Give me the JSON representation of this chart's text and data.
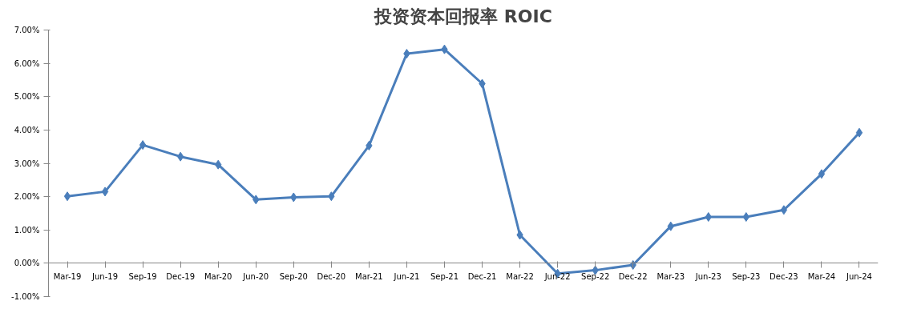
{
  "chart_data": {
    "type": "line",
    "title": "投资资本回报率 ROIC",
    "categories": [
      "Mar-19",
      "Jun-19",
      "Sep-19",
      "Dec-19",
      "Mar-20",
      "Jun-20",
      "Sep-20",
      "Dec-20",
      "Mar-21",
      "Jun-21",
      "Sep-21",
      "Dec-21",
      "Mar-22",
      "Jun-22",
      "Sep-22",
      "Dec-22",
      "Mar-23",
      "Jun-23",
      "Sep-23",
      "Dec-23",
      "Mar-24",
      "Jun-24"
    ],
    "series": [
      {
        "color": "#4a7ebb",
        "values": [
          2.01,
          2.15,
          3.55,
          3.2,
          2.96,
          1.91,
          1.98,
          2.01,
          3.53,
          6.29,
          6.42,
          5.39,
          0.85,
          -0.31,
          -0.21,
          -0.05,
          1.11,
          1.39,
          1.39,
          1.6,
          2.68,
          3.92
        ]
      }
    ],
    "ylim": [
      -1,
      7
    ],
    "yticks": [
      {
        "value": -1,
        "label": "-1.00%"
      },
      {
        "value": 0,
        "label": "0.00%"
      },
      {
        "value": 1,
        "label": "1.00%"
      },
      {
        "value": 2,
        "label": "2.00%"
      },
      {
        "value": 3,
        "label": "3.00%"
      },
      {
        "value": 4,
        "label": "4.00%"
      },
      {
        "value": 5,
        "label": "5.00%"
      },
      {
        "value": 6,
        "label": "6.00%"
      },
      {
        "value": 7,
        "label": "7.00%"
      }
    ],
    "grid": false,
    "marker": "diamond",
    "line_style": "solid"
  }
}
